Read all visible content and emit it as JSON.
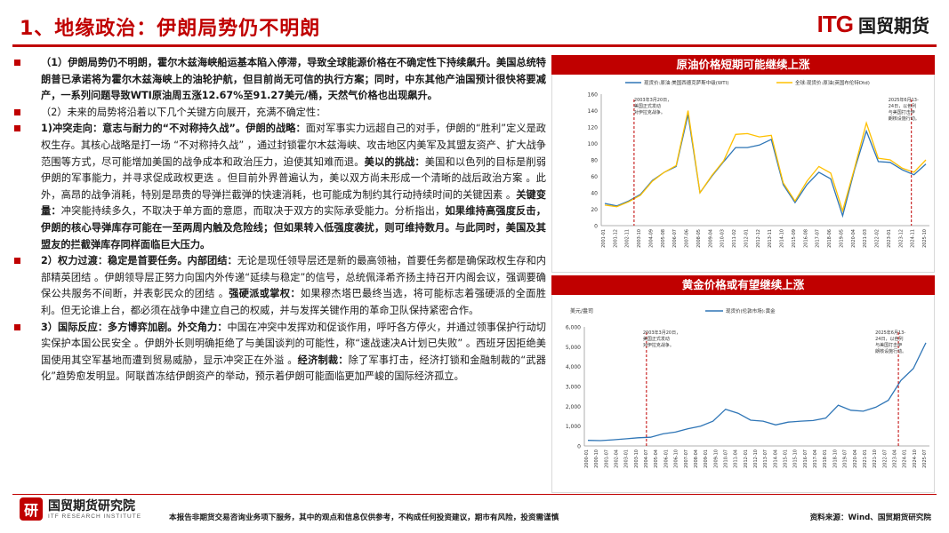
{
  "header": {
    "title": "1、地缘政治：伊朗局势仍不明朗",
    "logo_en": "ITG",
    "logo_cn": "国贸期货"
  },
  "left_text": {
    "p1": "（1）伊朗局势仍不明朗，霍尔木兹海峡船运基本陷入停滞，导致全球能源价格在不确定性下持续飙升。美国总统特朗普已承诺将为霍尔木兹海峡上的油轮护航，但目前尚无可信的执行方案；同时，中东其他产油国预计很快将要减产，一系列问题导致WTI原油周五涨12.67%至91.27美元/桶，天然气价格也出现飙升。",
    "p2": "（2）未来的局势将沿着以下几个关键方向展开，充满不确定性：",
    "p3_a": "1)冲突走向：意志与耐力的“不对称持久战”。伊朗的战略：",
    "p3_b": "面对军事实力远超自己的对手，伊朗的“胜利”定义是政权生存。其核心战略是打一场 “不对称持久战” ，通过封锁霍尔木兹海峡、攻击地区内美军及其盟友资产、扩大战争范围等方式，尽可能增加美国的战争成本和政治压力，迫使其知难而退。",
    "p3_c": "美以的挑战：",
    "p3_d": "美国和以色列的目标是削弱伊朗的军事能力，并寻求促成政权更迭 。但目前外界普遍认为，美以双方尚未形成一个清晰的战后政治方案 。此外，高昂的战争消耗，特别是昂贵的导弹拦截弹的快速消耗，也可能成为制约其行动持续时间的关键因素 。",
    "p3_e": "关键变量：",
    "p3_f": "冲突能持续多久，不取决于单方面的意愿，而取决于双方的实际承受能力。分析指出，",
    "p3_g": "如果维持高强度反击，伊朗的核心导弹库存可能在一至两周内触及危险线；但如果转入低强度袭扰，则可维持数月。与此同时，美国及其盟友的拦截弹库存同样面临巨大压力。",
    "p4_a": "2）权力过渡：稳定是首要任务。内部团结：",
    "p4_b": "无论是现任领导层还是新的最高领袖，首要任务都是确保政权生存和内部精英团结 。伊朗领导层正努力向国内外传递“延续与稳定”的信号，总统佩泽希齐扬主持召开内阁会议，强调要确保公共服务不间断，并表彰民众的团结 。",
    "p4_c": "强硬派或掌权：",
    "p4_d": "如果穆杰塔巴最终当选，将可能标志着强硬派的全面胜利。但无论谁上台，都必须在战争中建立自己的权威，并与发挥关键作用的革命卫队保持紧密合作。",
    "p5_a": "3）国际反应：多方博弈加剧。外交角力：",
    "p5_b": "中国在冲突中发挥劝和促谈作用，呼吁各方停火，并通过领事保护行动切实保护本国公民安全 。伊朗外长则明确拒绝了与美国谈判的可能性，称“速战速决A计划已失败” 。西班牙因拒绝美国使用其空军基地而遭到贸易威胁，显示冲突正在外溢 。",
    "p5_c": "经济制裁：",
    "p5_d": "除了军事打击，经济打锁和金融制裁的“武器化”趋势愈发明显。阿联酋冻结伊朗资产的举动，预示着伊朗可能面临更加严峻的国际经济孤立。"
  },
  "panel1": {
    "title": "原油价格短期可能继续上涨",
    "legend": [
      "现货价:原油:美国西德克萨斯中级(WTI)",
      "全球:现货价:原油(英国布伦特Dtd)"
    ],
    "annot_left": [
      "2003年3月20日，",
      "美国正式发动",
      "对伊拉克战争。"
    ],
    "annot_right": [
      "2025年6月13-",
      "24日，以色列",
      "与美国打击伊",
      "朗核设施行动。"
    ],
    "yticks": [
      "0",
      "20",
      "40",
      "60",
      "80",
      "100",
      "120",
      "140",
      "160"
    ],
    "xticks": [
      "2001-01",
      "2001-12",
      "2002-11",
      "2003-10",
      "2004-09",
      "2005-08",
      "2006-07",
      "2007-06",
      "2008-05",
      "2009-04",
      "2010-03",
      "2011-02",
      "2012-01",
      "2012-12",
      "2013-11",
      "2014-10",
      "2015-09",
      "2016-08",
      "2017-07",
      "2018-06",
      "2019-05",
      "2020-04",
      "2021-03",
      "2022-02",
      "2023-01",
      "2023-12",
      "2024-11",
      "2025-10"
    ]
  },
  "panel2": {
    "title": "黄金价格或有望继续上涨",
    "unit": "美元/盎司",
    "legend": "现货价(伦敦市场):黄金",
    "annot_left": [
      "2003年3月20日，",
      "美国正式发动",
      "对伊拉克战争。"
    ],
    "annot_right": [
      "2025年6月13-",
      "24日，以色列",
      "与美国打击伊",
      "朗核设施行动。"
    ],
    "yticks": [
      "0",
      "1,000",
      "2,000",
      "3,000",
      "4,000",
      "5,000",
      "6,000"
    ],
    "xticks": [
      "2000-01",
      "2000-10",
      "2001-07",
      "2002-04",
      "2003-01",
      "2003-10",
      "2004-07",
      "2005-04",
      "2006-01",
      "2006-10",
      "2007-07",
      "2008-04",
      "2009-01",
      "2009-10",
      "2010-07",
      "2011-04",
      "2012-01",
      "2012-10",
      "2013-07",
      "2014-04",
      "2015-01",
      "2015-10",
      "2016-07",
      "2017-04",
      "2018-01",
      "2018-10",
      "2019-07",
      "2020-04",
      "2021-01",
      "2021-10",
      "2022-07",
      "2023-04",
      "2024-01",
      "2024-10",
      "2025-07"
    ]
  },
  "footer": {
    "research_cn": "国贸期货研究院",
    "research_en": "ITF RESEARCH INSTITUTE",
    "research_mark": "研",
    "disclaimer": "本报告非期货交易咨询业务项下服务，其中的观点和信息仅供参考，不构成任何投资建议，期市有风险，投资需谨慎",
    "source": "资料来源：Wind、国贸期货研究院"
  },
  "colors": {
    "brand_red": "#c00000",
    "wti_blue": "#2e75b6",
    "brent_yellow": "#ffc000",
    "gold_blue": "#2e75b6"
  },
  "chart_data": [
    {
      "type": "line",
      "title": "原油价格短期可能继续上涨",
      "ylim": [
        0,
        160
      ],
      "xlabel": "",
      "ylabel": "",
      "x": [
        "2001",
        "2002",
        "2003",
        "2004",
        "2005",
        "2006",
        "2007",
        "2008-06",
        "2008-12",
        "2009",
        "2010",
        "2011",
        "2012",
        "2013",
        "2014-06",
        "2015",
        "2016-02",
        "2017",
        "2018",
        "2019",
        "2020-04",
        "2021",
        "2022-06",
        "2023",
        "2024",
        "2025-06",
        "2025-10",
        "2026"
      ],
      "series": [
        {
          "name": "现货价:原油:美国西德克萨斯中级(WTI)",
          "values": [
            27,
            24,
            30,
            38,
            55,
            65,
            72,
            135,
            40,
            60,
            78,
            95,
            95,
            98,
            105,
            50,
            28,
            50,
            65,
            57,
            12,
            68,
            115,
            78,
            77,
            68,
            62,
            75
          ]
        },
        {
          "name": "全球:现货价:原油(英国布伦特Dtd)",
          "values": [
            25,
            23,
            29,
            37,
            54,
            65,
            73,
            140,
            40,
            61,
            79,
            111,
            112,
            108,
            110,
            52,
            30,
            54,
            72,
            64,
            18,
            70,
            125,
            82,
            80,
            70,
            65,
            80
          ]
        }
      ]
    },
    {
      "type": "line",
      "title": "黄金价格或有望继续上涨",
      "ylabel": "美元/盎司",
      "ylim": [
        0,
        6000
      ],
      "x": [
        "2000",
        "2001",
        "2002",
        "2003",
        "2004",
        "2005",
        "2006",
        "2007",
        "2008",
        "2009",
        "2010",
        "2011-09",
        "2012",
        "2013",
        "2014",
        "2015-12",
        "2016",
        "2017",
        "2018",
        "2019",
        "2020-08",
        "2021",
        "2022",
        "2023",
        "2024",
        "2025-06",
        "2025-10",
        "2026-02"
      ],
      "series": [
        {
          "name": "现货价(伦敦市场):黄金",
          "values": [
            280,
            270,
            310,
            360,
            410,
            440,
            610,
            700,
            870,
            1000,
            1250,
            1850,
            1650,
            1300,
            1250,
            1060,
            1200,
            1250,
            1280,
            1400,
            2050,
            1800,
            1750,
            1950,
            2300,
            3300,
            3900,
            5200
          ]
        }
      ]
    }
  ]
}
